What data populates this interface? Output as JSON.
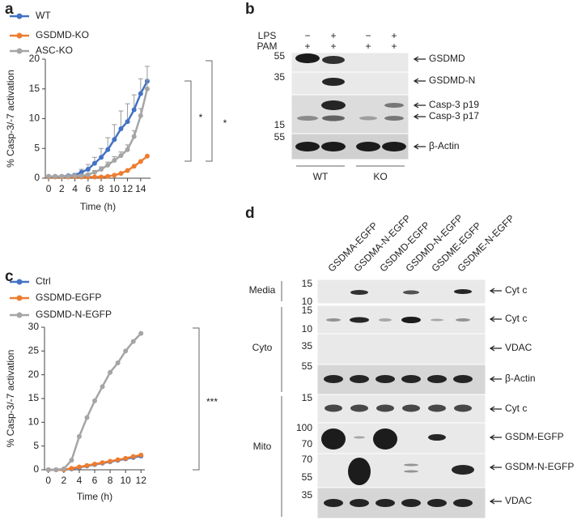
{
  "chart_data": [
    {
      "type": "line",
      "panel": "a",
      "ylabel": "% Casp-3/-7 activation",
      "xlabel": "Time (h)",
      "x": [
        0,
        1,
        2,
        3,
        4,
        5,
        6,
        7,
        8,
        9,
        10,
        11,
        12,
        13,
        14,
        15
      ],
      "xlim": [
        -0.5,
        15.5
      ],
      "xticks": [
        0,
        2,
        4,
        6,
        8,
        10,
        12,
        14
      ],
      "ylim": [
        0,
        20
      ],
      "yticks": [
        0,
        5,
        10,
        15,
        20
      ],
      "series": [
        {
          "name": "WT",
          "color": "#4472c4",
          "values": [
            0.3,
            0.3,
            0.3,
            0.4,
            0.5,
            1,
            1.5,
            2.5,
            3.5,
            4.8,
            6.5,
            8.3,
            9.5,
            11.5,
            14.2,
            16.3
          ],
          "errors": [
            0.1,
            0.1,
            0.1,
            0.2,
            0.3,
            0.5,
            0.8,
            1,
            1.5,
            2,
            2.5,
            3,
            3,
            2.5,
            2.5,
            2.5
          ]
        },
        {
          "name": "GSDMD-KO",
          "color": "#ed7d31",
          "values": [
            0.2,
            0.2,
            0.2,
            0.2,
            0.2,
            0.2,
            0.2,
            0.2,
            0.2,
            0.3,
            0.5,
            0.8,
            1.3,
            2,
            2.8,
            3.7
          ]
        },
        {
          "name": "ASC-KO",
          "color": "#a5a5a5",
          "values": [
            0.3,
            0.3,
            0.3,
            0.3,
            0.4,
            0.4,
            0.6,
            1,
            1.5,
            2.2,
            3,
            3.8,
            4.8,
            7,
            10.5,
            15
          ],
          "errors": [
            0.1,
            0.1,
            0.1,
            0.1,
            0.1,
            0.1,
            0.2,
            0.3,
            0.4,
            0.5,
            0.6,
            0.6,
            0.8,
            1,
            1.2,
            1.5
          ]
        }
      ],
      "annotations": [
        "*",
        "*"
      ]
    },
    {
      "type": "line",
      "panel": "c",
      "ylabel": "% Casp-3/-7 activation",
      "xlabel": "Time (h)",
      "x": [
        0,
        1,
        2,
        3,
        4,
        5,
        6,
        7,
        8,
        9,
        10,
        11,
        12
      ],
      "xlim": [
        -0.5,
        12.5
      ],
      "xticks": [
        0,
        2,
        4,
        6,
        8,
        10,
        12
      ],
      "ylim": [
        0,
        30
      ],
      "yticks": [
        0,
        5,
        10,
        15,
        20,
        25,
        30
      ],
      "series": [
        {
          "name": "Ctrl",
          "color": "#4472c4",
          "values": [
            0,
            0,
            0,
            0.2,
            0.5,
            0.8,
            1.1,
            1.4,
            1.7,
            2,
            2.3,
            2.6,
            2.9
          ]
        },
        {
          "name": "GSDMD-EGFP",
          "color": "#ed7d31",
          "values": [
            0,
            0,
            0,
            0.3,
            0.6,
            0.9,
            1.2,
            1.5,
            1.8,
            2.1,
            2.4,
            2.8,
            3.1
          ]
        },
        {
          "name": "GSDMD-N-EGFP",
          "color": "#a5a5a5",
          "values": [
            0,
            0,
            0.2,
            2,
            7,
            11,
            14.5,
            17.5,
            20.5,
            22.5,
            25,
            27,
            28.7
          ]
        }
      ],
      "annotations": [
        "***"
      ]
    }
  ],
  "blot_b": {
    "panel": "b",
    "rows": [
      {
        "label": "LPS",
        "lanes": [
          "−",
          "+",
          "−",
          "+"
        ]
      },
      {
        "label": "PAM",
        "lanes": [
          "+",
          "+",
          "+",
          "+"
        ]
      }
    ],
    "markers": [
      "55",
      "35",
      "15",
      "55"
    ],
    "bands": [
      "GSDMD",
      "GSDMD-N",
      "Casp-3 p19",
      "Casp-3 p17",
      "β-Actin"
    ],
    "groups": [
      "WT",
      "KO"
    ]
  },
  "blot_d": {
    "panel": "d",
    "lanes": [
      "GSDMA-EGFP",
      "GSDMA-N-EGFP",
      "GSDMD-EGFP",
      "GSDMD-N-EGFP",
      "GSDME-EGFP",
      "GSDME-N-EGFP"
    ],
    "markers": [
      "15",
      "10",
      "15",
      "10",
      "35",
      "55",
      "15",
      "100",
      "70",
      "70",
      "55",
      "35"
    ],
    "bands": [
      "Cyt c",
      "Cyt c",
      "VDAC",
      "β-Actin",
      "Cyt c",
      "GSDM-EGFP",
      "GSDM-N-EGFP",
      "VDAC"
    ],
    "groups": [
      "Media",
      "Cyto",
      "Mito"
    ]
  }
}
